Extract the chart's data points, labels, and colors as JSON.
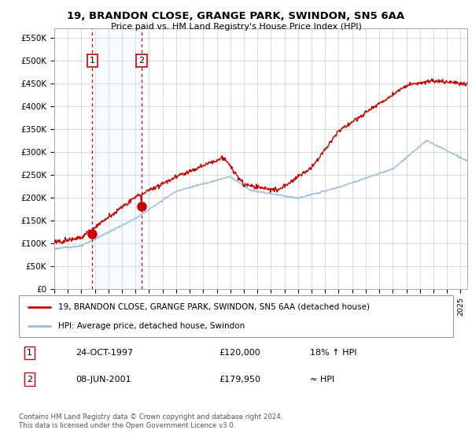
{
  "title": "19, BRANDON CLOSE, GRANGE PARK, SWINDON, SN5 6AA",
  "subtitle": "Price paid vs. HM Land Registry's House Price Index (HPI)",
  "ylabel_ticks": [
    "£0",
    "£50K",
    "£100K",
    "£150K",
    "£200K",
    "£250K",
    "£300K",
    "£350K",
    "£400K",
    "£450K",
    "£500K",
    "£550K"
  ],
  "ytick_values": [
    0,
    50000,
    100000,
    150000,
    200000,
    250000,
    300000,
    350000,
    400000,
    450000,
    500000,
    550000
  ],
  "ylim": [
    0,
    570000
  ],
  "xlim_start": 1995.0,
  "xlim_end": 2025.5,
  "sale1_x": 1997.81,
  "sale1_y": 120000,
  "sale1_label": "1",
  "sale2_x": 2001.44,
  "sale2_y": 179950,
  "sale2_label": "2",
  "red_line_color": "#cc0000",
  "blue_line_color": "#99bbdd",
  "marker_color": "#cc0000",
  "vline_color": "#cc0000",
  "shade_color": "#ddeeff",
  "legend_line1": "19, BRANDON CLOSE, GRANGE PARK, SWINDON, SN5 6AA (detached house)",
  "legend_line2": "HPI: Average price, detached house, Swindon",
  "table_row1": [
    "1",
    "24-OCT-1997",
    "£120,000",
    "18% ↑ HPI"
  ],
  "table_row2": [
    "2",
    "08-JUN-2001",
    "£179,950",
    "≈ HPI"
  ],
  "footer": "Contains HM Land Registry data © Crown copyright and database right 2024.\nThis data is licensed under the Open Government Licence v3.0.",
  "background_color": "#ffffff",
  "grid_color": "#cccccc"
}
